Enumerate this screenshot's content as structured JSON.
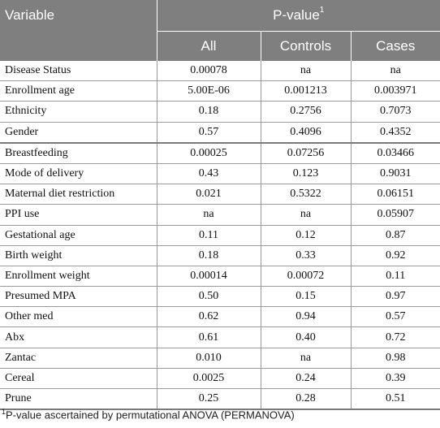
{
  "header": {
    "variable": "Variable",
    "pvalue": "P-value",
    "pvalue_sup": "1",
    "cols": [
      "All",
      "Controls",
      "Cases"
    ]
  },
  "rows": [
    {
      "label": "Disease Status",
      "all": "0.00078",
      "controls": "na",
      "cases": "na"
    },
    {
      "label": "Enrollment age",
      "all": "5.00E-06",
      "controls": "0.001213",
      "cases": "0.003971"
    },
    {
      "label": "Ethnicity",
      "all": "0.18",
      "controls": "0.2756",
      "cases": "0.7073"
    },
    {
      "label": "Gender",
      "all": "0.57",
      "controls": "0.4096",
      "cases": "0.4352"
    },
    {
      "label": "Breastfeeding",
      "all": "0.00025",
      "controls": "0.07256",
      "cases": "0.03466"
    },
    {
      "label": "Mode of delivery",
      "all": "0.43",
      "controls": "0.123",
      "cases": "0.9031"
    },
    {
      "label": "Maternal diet restriction",
      "all": "0.021",
      "controls": "0.5322",
      "cases": "0.06151"
    },
    {
      "label": "PPI use",
      "all": "na",
      "controls": "na",
      "cases": "0.05907"
    },
    {
      "label": "Gestational age",
      "all": "0.11",
      "controls": "0.12",
      "cases": "0.87"
    },
    {
      "label": "Birth weight",
      "all": "0.18",
      "controls": "0.33",
      "cases": "0.92"
    },
    {
      "label": "Enrollment weight",
      "all": "0.00014",
      "controls": "0.00072",
      "cases": "0.11"
    },
    {
      "label": "Presumed MPA",
      "all": "0.50",
      "controls": "0.15",
      "cases": "0.97"
    },
    {
      "label": "Other med",
      "all": "0.62",
      "controls": "0.94",
      "cases": "0.57"
    },
    {
      "label": "Abx",
      "all": "0.61",
      "controls": "0.40",
      "cases": "0.72"
    },
    {
      "label": "Zantac",
      "all": "0.010",
      "controls": "na",
      "cases": "0.98"
    },
    {
      "label": "Cereal",
      "all": "0.0025",
      "controls": "0.24",
      "cases": "0.39"
    },
    {
      "label": "Prune",
      "all": "0.25",
      "controls": "0.28",
      "cases": "0.51"
    }
  ],
  "footnote": {
    "marker": "1",
    "text": "P-value ascertained by permutational ANOVA (PERMANOVA)"
  }
}
